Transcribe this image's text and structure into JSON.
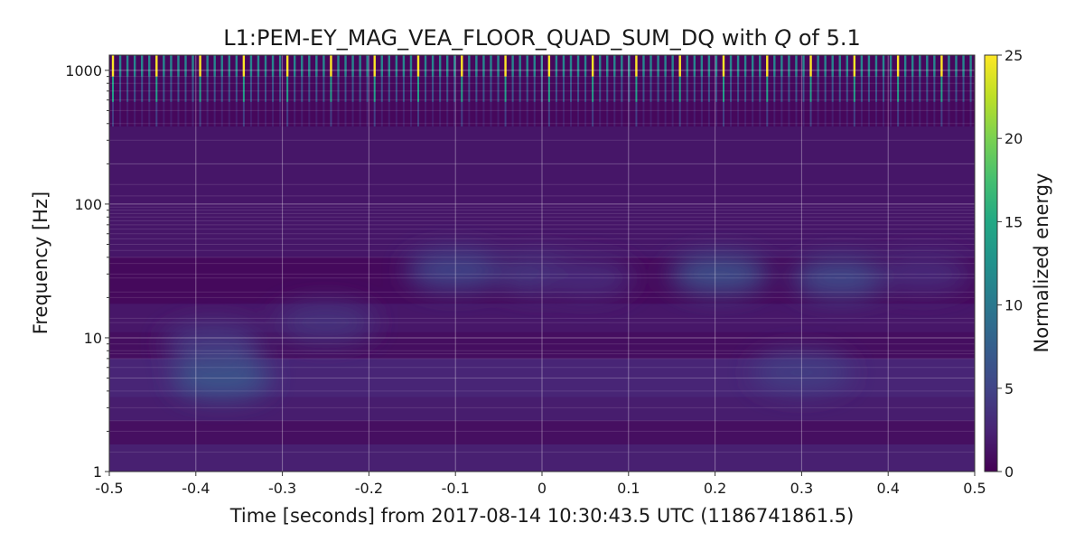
{
  "chart_data": {
    "type": "heatmap",
    "title_prefix": "L1:PEM-EY_MAG_VEA_FLOOR_QUAD_SUM_DQ with ",
    "title_q": "Q",
    "title_suffix": " of 5.1",
    "xlabel": "Time [seconds] from 2017-08-14 10:30:43.5 UTC (1186741861.5)",
    "ylabel": "Frequency [Hz]",
    "xlim": [
      -0.5,
      0.5
    ],
    "ylim": [
      1,
      1300
    ],
    "yscale": "log",
    "x_ticks": [
      -0.5,
      -0.4,
      -0.3,
      -0.2,
      -0.1,
      0,
      0.1,
      0.2,
      0.3,
      0.4,
      0.5
    ],
    "x_tick_labels": [
      "-0.5",
      "-0.4",
      "-0.3",
      "-0.2",
      "-0.1",
      "0",
      "0.1",
      "0.2",
      "0.3",
      "0.4",
      "0.5"
    ],
    "y_ticks": [
      1,
      10,
      100,
      1000
    ],
    "y_tick_labels": [
      "1",
      "10",
      "100",
      "1000"
    ],
    "grid": true,
    "colormap": "viridis",
    "colorbar": {
      "label": "Normalized energy",
      "range": [
        0,
        25
      ],
      "ticks": [
        0,
        5,
        10,
        15,
        20,
        25
      ],
      "tick_labels": [
        "0",
        "5",
        "10",
        "15",
        "20",
        "25"
      ]
    },
    "high_freq_pulses": {
      "interval_s": 0.0084,
      "start_s": -0.4958,
      "freq_range_hz": [
        380,
        1300
      ],
      "peak_value": 25
    },
    "hotspots": [
      {
        "t": -0.37,
        "f": 5,
        "value": 6.5
      },
      {
        "t": -0.38,
        "f": 9,
        "value": 4
      },
      {
        "t": -0.1,
        "f": 32,
        "value": 5
      },
      {
        "t": 0.0,
        "f": 30,
        "value": 4
      },
      {
        "t": 0.05,
        "f": 28,
        "value": 3
      },
      {
        "t": 0.205,
        "f": 30,
        "value": 6
      },
      {
        "t": 0.345,
        "f": 28,
        "value": 5.5
      },
      {
        "t": 0.44,
        "f": 30,
        "value": 3
      },
      {
        "t": 0.3,
        "f": 5.5,
        "value": 4.5
      },
      {
        "t": -0.25,
        "f": 13,
        "value": 3.5
      }
    ]
  }
}
